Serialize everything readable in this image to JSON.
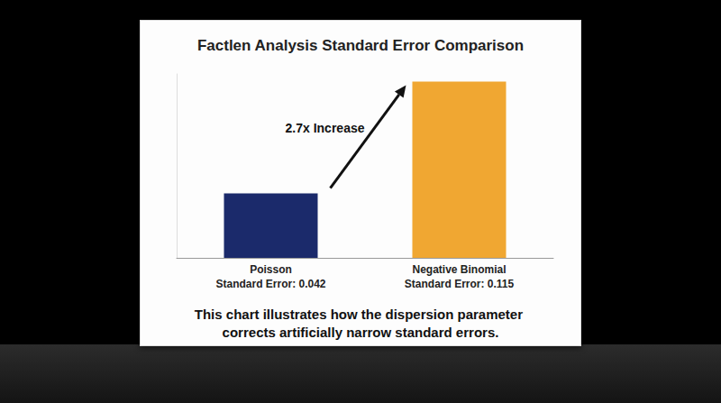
{
  "chart_data": {
    "type": "bar",
    "title": "Factlen Analysis Standard Error Comparison",
    "categories": [
      "Poisson",
      "Negative Binomial"
    ],
    "values": [
      0.042,
      0.115
    ],
    "value_labels": [
      "Standard Error: 0.042",
      "Standard Error: 0.115"
    ],
    "data_labels": true,
    "colors": [
      "#1b2a6b",
      "#f0a732"
    ],
    "ylim": [
      0,
      0.12
    ],
    "yticks": [],
    "tick_labels": "x",
    "grid": false,
    "annotations": [
      "2.7x Increase"
    ],
    "caption": "This chart illustrates how the dispersion parameter corrects artificially narrow standard errors."
  }
}
